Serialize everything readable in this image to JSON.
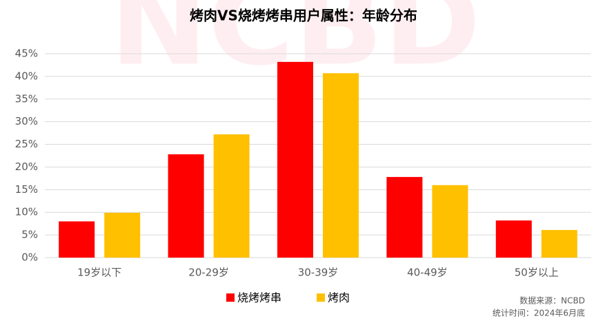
{
  "chart_data": {
    "type": "bar",
    "title": "烤肉VS烧烤烤串用户属性：年龄分布",
    "categories": [
      "19岁以下",
      "20-29岁",
      "30-39岁",
      "40-49岁",
      "50岁以上"
    ],
    "series": [
      {
        "name": "烧烤烤串",
        "color": "#ff0000",
        "values": [
          8.0,
          22.8,
          43.2,
          17.8,
          8.2
        ]
      },
      {
        "name": "烤肉",
        "color": "#ffc000",
        "values": [
          9.9,
          27.2,
          40.7,
          16.0,
          6.1
        ]
      }
    ],
    "ylim": [
      0,
      45
    ],
    "yticks": [
      {
        "value": 0,
        "label": "0%"
      },
      {
        "value": 5,
        "label": "5%"
      },
      {
        "value": 10,
        "label": "10%"
      },
      {
        "value": 15,
        "label": "15%"
      },
      {
        "value": 20,
        "label": "20%"
      },
      {
        "value": 25,
        "label": "25%"
      },
      {
        "value": 30,
        "label": "30%"
      },
      {
        "value": 35,
        "label": "35%"
      },
      {
        "value": 40,
        "label": "40%"
      },
      {
        "value": 45,
        "label": "45%"
      }
    ],
    "grid": true,
    "legend": "bottom",
    "watermark": "NCBD",
    "source": [
      "数据来源：NCBD",
      "统计时间：2024年6月底"
    ]
  }
}
